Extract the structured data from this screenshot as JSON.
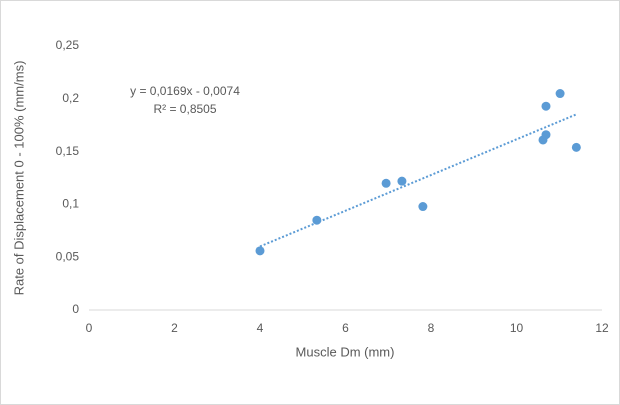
{
  "chart_data": {
    "type": "scatter",
    "x_label": "Muscle Dm (mm)",
    "y_label": "Rate of Displacement 0 - 100% (mm/ms)",
    "x": [
      4.0,
      5.33,
      6.95,
      7.32,
      7.81,
      10.62,
      10.69,
      10.69,
      11.02,
      11.4
    ],
    "values": [
      0.056,
      0.085,
      0.12,
      0.122,
      0.098,
      0.161,
      0.166,
      0.193,
      0.205,
      0.154
    ],
    "color": "#5b9bd5",
    "xlim": [
      0,
      12
    ],
    "xticks": [
      0,
      2,
      4,
      6,
      8,
      10,
      12
    ],
    "ylim": [
      0,
      0.25
    ],
    "yticks": [
      {
        "value": 0,
        "label": "0"
      },
      {
        "value": 0.05,
        "label": "0,05"
      },
      {
        "value": 0.1,
        "label": "0,1"
      },
      {
        "value": 0.15,
        "label": "0,15"
      },
      {
        "value": 0.2,
        "label": "0,2"
      },
      {
        "value": 0.25,
        "label": "0,25"
      }
    ],
    "trendline": {
      "equation": "y = 0,0169x - 0,0074",
      "r_squared": "R² = 0,8505",
      "slope": 0.0169,
      "intercept": -0.0074
    }
  }
}
